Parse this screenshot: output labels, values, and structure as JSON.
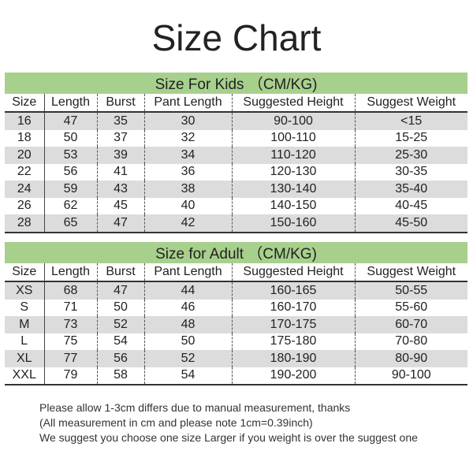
{
  "title": "Size Chart",
  "columns": [
    "Size",
    "Length",
    "Burst",
    "Pant Length",
    "Suggested Height",
    "Suggest Weight"
  ],
  "kids": {
    "heading": "Size For Kids （CM/KG)",
    "rows": [
      [
        "16",
        "47",
        "35",
        "30",
        "90-100",
        "<15"
      ],
      [
        "18",
        "50",
        "37",
        "32",
        "100-110",
        "15-25"
      ],
      [
        "20",
        "53",
        "39",
        "34",
        "110-120",
        "25-30"
      ],
      [
        "22",
        "56",
        "41",
        "36",
        "120-130",
        "30-35"
      ],
      [
        "24",
        "59",
        "43",
        "38",
        "130-140",
        "35-40"
      ],
      [
        "26",
        "62",
        "45",
        "40",
        "140-150",
        "40-45"
      ],
      [
        "28",
        "65",
        "47",
        "42",
        "150-160",
        "45-50"
      ]
    ]
  },
  "adult": {
    "heading": "Size for Adult （CM/KG)",
    "rows": [
      [
        "XS",
        "68",
        "47",
        "44",
        "160-165",
        "50-55"
      ],
      [
        "S",
        "71",
        "50",
        "46",
        "160-170",
        "55-60"
      ],
      [
        "M",
        "73",
        "52",
        "48",
        "170-175",
        "60-70"
      ],
      [
        "L",
        "75",
        "54",
        "50",
        "175-180",
        "70-80"
      ],
      [
        "XL",
        "77",
        "56",
        "52",
        "180-190",
        "80-90"
      ],
      [
        "XXL",
        "79",
        "58",
        "54",
        "190-200",
        "90-100"
      ]
    ]
  },
  "notes": [
    "Please allow 1-3cm differs due to manual measurement, thanks",
    "(All measurement in cm and please note 1cm=0.39inch)",
    "We suggest you choose one size Larger if you weight is over the suggest one"
  ],
  "colors": {
    "band": "#a8d08d",
    "stripe": "#dcdcdc"
  }
}
